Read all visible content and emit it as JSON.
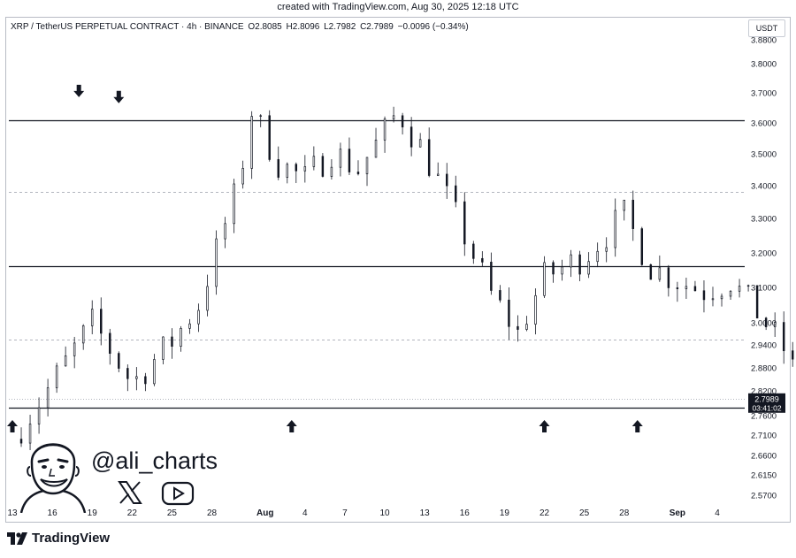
{
  "created_line": "created with TradingView.com, Aug 30, 2025 12:18 UTC",
  "header": {
    "symbol": "XRP / TetherUS PERPETUAL CONTRACT · 4h · BINANCE",
    "open": "O2.8085",
    "high": "H2.8096",
    "low": "L2.7982",
    "close": "C2.7989",
    "change": "−0.0096 (−0.34%)",
    "currency": "USDT"
  },
  "branding": {
    "handle": "@ali_charts",
    "footer_logo": "TradingView",
    "icons": [
      "avatar-face-icon",
      "x-logo-icon",
      "youtube-icon",
      "tradingview-logo-icon"
    ]
  },
  "colors": {
    "candle": "#131722",
    "level": "#131722",
    "dashed": "#b2b5be",
    "badge_bg": "#131722",
    "badge_text": "#ffffff"
  },
  "chart_data": {
    "type": "candlestick",
    "interval": "4h",
    "x_ticks": [
      "13",
      "16",
      "19",
      "22",
      "25",
      "28",
      "Aug",
      "4",
      "7",
      "10",
      "13",
      "16",
      "19",
      "22",
      "25",
      "28",
      "Sep",
      "4"
    ],
    "y_ticks": [
      "3.8800",
      "3.8000",
      "3.7000",
      "3.6000",
      "3.5000",
      "3.4000",
      "3.3000",
      "3.2000",
      "3.1000",
      "3.0000",
      "2.9400",
      "2.8800",
      "2.8200",
      "2.7600",
      "2.7100",
      "2.6600",
      "2.6150",
      "2.5700"
    ],
    "y_scale": "log",
    "last_price": "2.7989",
    "countdown": "03:41:02",
    "levels": [
      {
        "price": 3.61,
        "style": "solid"
      },
      {
        "price": 3.38,
        "style": "dashed"
      },
      {
        "price": 3.16,
        "style": "solid"
      },
      {
        "price": 2.955,
        "style": "dashed"
      },
      {
        "price": 2.8,
        "style": "dotted"
      },
      {
        "price": 2.78,
        "style": "solid"
      }
    ],
    "markers": [
      {
        "direction": "down",
        "date": "2025-07-18",
        "price": 3.65
      },
      {
        "direction": "down",
        "date": "2025-07-21",
        "price": 3.63
      },
      {
        "direction": "up",
        "date": "2025-07-13",
        "price": 2.74
      },
      {
        "direction": "up",
        "date": "2025-08-03",
        "price": 2.74
      },
      {
        "direction": "up",
        "date": "2025-08-22",
        "price": 2.74
      },
      {
        "direction": "up",
        "date": "2025-08-29",
        "price": 2.74
      }
    ],
    "path": [
      [
        0,
        2.7
      ],
      [
        3,
        2.84
      ],
      [
        6,
        3.0
      ],
      [
        9,
        2.84
      ],
      [
        12,
        2.95
      ],
      [
        14,
        3.05
      ],
      [
        17,
        3.4
      ],
      [
        18,
        3.64
      ],
      [
        20,
        3.47
      ],
      [
        22,
        3.42
      ],
      [
        24,
        3.51
      ],
      [
        26,
        3.45
      ],
      [
        28,
        3.57
      ],
      [
        29,
        3.64
      ],
      [
        31,
        3.5
      ],
      [
        34,
        3.25
      ],
      [
        36,
        3.08
      ],
      [
        38,
        2.97
      ],
      [
        40,
        3.13
      ],
      [
        43,
        3.19
      ],
      [
        46,
        3.31
      ],
      [
        48,
        3.16
      ],
      [
        50,
        3.12
      ],
      [
        52,
        3.09
      ],
      [
        54,
        3.12
      ],
      [
        56,
        3.03
      ],
      [
        58,
        2.93
      ],
      [
        60,
        2.77
      ],
      [
        62,
        2.87
      ],
      [
        64,
        3.0
      ],
      [
        66,
        2.96
      ],
      [
        68,
        2.93
      ],
      [
        70,
        3.05
      ],
      [
        72,
        3.14
      ],
      [
        73,
        3.37
      ],
      [
        75,
        3.29
      ],
      [
        78,
        3.23
      ],
      [
        80,
        3.14
      ],
      [
        83,
        3.25
      ],
      [
        85,
        3.34
      ],
      [
        87,
        3.2
      ],
      [
        89,
        3.05
      ],
      [
        91,
        3.11
      ],
      [
        93,
        3.08
      ],
      [
        95,
        3.14
      ],
      [
        97,
        2.95
      ],
      [
        99,
        2.88
      ],
      [
        101,
        2.91
      ],
      [
        102,
        2.86
      ],
      [
        104,
        2.83
      ],
      [
        105,
        3.07
      ],
      [
        107,
        3.05
      ],
      [
        109,
        3.0
      ],
      [
        111,
        2.92
      ],
      [
        113,
        2.88
      ],
      [
        115,
        3.03
      ],
      [
        117,
        3.0
      ],
      [
        119,
        2.96
      ],
      [
        121,
        2.86
      ],
      [
        122,
        2.82
      ],
      [
        124,
        2.8
      ],
      [
        125,
        2.8
      ]
    ]
  }
}
